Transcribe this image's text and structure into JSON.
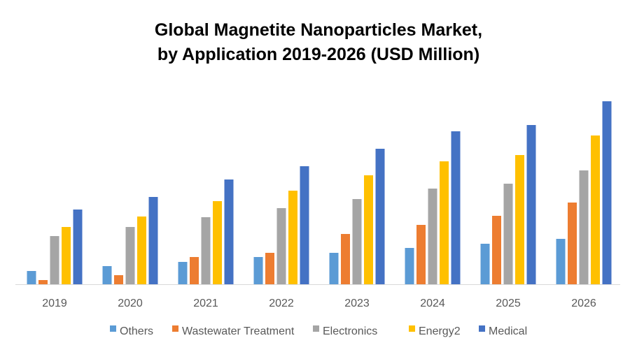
{
  "chart_data": {
    "type": "bar",
    "title": [
      "Global Magnetite Nanoparticles Market,",
      "by Application 2019-2026 (USD Million)"
    ],
    "xlabel": "",
    "ylabel": "",
    "y_axis_shown": false,
    "grid": false,
    "legend_position": "bottom",
    "categories": [
      "2019",
      "2020",
      "2021",
      "2022",
      "2023",
      "2024",
      "2025",
      "2026"
    ],
    "series": [
      {
        "name": "Others",
        "color": "#5B9BD5",
        "values": [
          19,
          26,
          32,
          39,
          45,
          52,
          58,
          65
        ]
      },
      {
        "name": "Wastewater Treatment",
        "color": "#ED7D31",
        "values": [
          6,
          13,
          39,
          45,
          72,
          85,
          98,
          117
        ]
      },
      {
        "name": "Electronics",
        "color": "#A5A5A5",
        "values": [
          69,
          82,
          96,
          109,
          122,
          137,
          144,
          163
        ]
      },
      {
        "name": "Energy2",
        "color": "#FFC000",
        "values": [
          82,
          97,
          119,
          134,
          156,
          176,
          185,
          213
        ]
      },
      {
        "name": "Medical",
        "color": "#4472C4",
        "values": [
          107,
          125,
          150,
          169,
          194,
          219,
          228,
          262
        ]
      }
    ]
  }
}
